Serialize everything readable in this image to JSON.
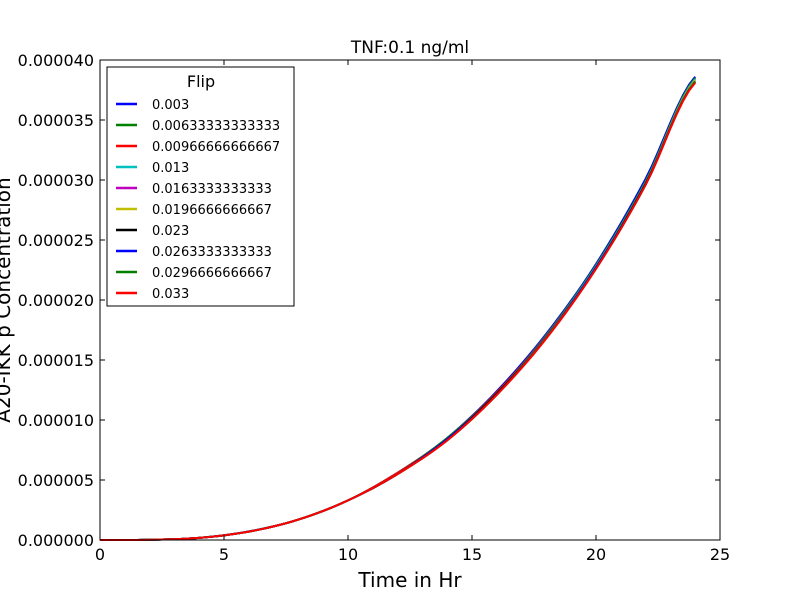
{
  "chart_data": {
    "type": "line",
    "title": "TNF:0.1 ng/ml",
    "xlabel": "Time in Hr",
    "ylabel": "A20-IKK p Concentration",
    "xlim": [
      0,
      25
    ],
    "ylim": [
      0,
      4e-05
    ],
    "x_ticks": [
      0,
      5,
      10,
      15,
      20,
      25
    ],
    "x_tick_labels": [
      "0",
      "5",
      "10",
      "15",
      "20",
      "25"
    ],
    "y_ticks": [
      0,
      5e-06,
      1e-05,
      1.5e-05,
      2e-05,
      2.5e-05,
      3e-05,
      3.5e-05,
      4e-05
    ],
    "y_tick_labels": [
      "0.000000",
      "0.000005",
      "0.000010",
      "0.000015",
      "0.000020",
      "0.000025",
      "0.000030",
      "0.000035",
      "0.000040"
    ],
    "grid": false,
    "legend": {
      "title": "Flip",
      "placement": "upper-left"
    },
    "x": [
      0,
      2,
      4,
      6,
      8,
      10,
      12,
      14,
      16,
      18,
      20,
      22,
      24
    ],
    "series": [
      {
        "name": "0.003",
        "color": "#0000ff",
        "values": [
          0,
          2e-08,
          1.8e-07,
          7.2e-07,
          1.7e-06,
          3.3e-06,
          5.6e-06,
          8.5e-06,
          1.24e-05,
          1.72e-05,
          2.3e-05,
          3.01e-05,
          3.86e-05
        ]
      },
      {
        "name": "0.00633333333333",
        "color": "#008000",
        "values": [
          0,
          2e-08,
          1.8e-07,
          7.1e-07,
          1.7e-06,
          3.3e-06,
          5.6e-06,
          8.5e-06,
          1.23e-05,
          1.71e-05,
          2.29e-05,
          2.99e-05,
          3.85e-05
        ]
      },
      {
        "name": "0.00966666666667",
        "color": "#ff0000",
        "values": [
          0,
          2e-08,
          1.8e-07,
          7.1e-07,
          1.7e-06,
          3.3e-06,
          5.6e-06,
          8.4e-06,
          1.23e-05,
          1.7e-05,
          2.28e-05,
          2.98e-05,
          3.84e-05
        ]
      },
      {
        "name": "0.013",
        "color": "#00bfbf",
        "values": [
          0,
          2e-08,
          1.8e-07,
          7.1e-07,
          1.7e-06,
          3.3e-06,
          5.5e-06,
          8.4e-06,
          1.22e-05,
          1.7e-05,
          2.28e-05,
          2.98e-05,
          3.84e-05
        ]
      },
      {
        "name": "0.0163333333333",
        "color": "#bf00bf",
        "values": [
          0,
          2e-08,
          1.8e-07,
          7e-07,
          1.7e-06,
          3.3e-06,
          5.5e-06,
          8.4e-06,
          1.22e-05,
          1.7e-05,
          2.27e-05,
          2.97e-05,
          3.83e-05
        ]
      },
      {
        "name": "0.0196666666667",
        "color": "#bfbf00",
        "values": [
          0,
          2e-08,
          1.8e-07,
          7e-07,
          1.7e-06,
          3.3e-06,
          5.5e-06,
          8.4e-06,
          1.22e-05,
          1.69e-05,
          2.27e-05,
          2.97e-05,
          3.83e-05
        ]
      },
      {
        "name": "0.023",
        "color": "#000000",
        "values": [
          0,
          2e-08,
          1.8e-07,
          7e-07,
          1.7e-06,
          3.3e-06,
          5.5e-06,
          8.4e-06,
          1.22e-05,
          1.69e-05,
          2.27e-05,
          2.97e-05,
          3.82e-05
        ]
      },
      {
        "name": "0.0263333333333",
        "color": "#0000ff",
        "values": [
          0,
          2e-08,
          1.8e-07,
          7e-07,
          1.7e-06,
          3.3e-06,
          5.5e-06,
          8.4e-06,
          1.21e-05,
          1.69e-05,
          2.27e-05,
          2.96e-05,
          3.82e-05
        ]
      },
      {
        "name": "0.0296666666667",
        "color": "#008000",
        "values": [
          0,
          2e-08,
          1.8e-07,
          7e-07,
          1.7e-06,
          3.3e-06,
          5.5e-06,
          8.3e-06,
          1.21e-05,
          1.69e-05,
          2.26e-05,
          2.96e-05,
          3.82e-05
        ]
      },
      {
        "name": "0.033",
        "color": "#ff0000",
        "values": [
          0,
          2e-08,
          1.8e-07,
          7e-07,
          1.7e-06,
          3.3e-06,
          5.5e-06,
          8.3e-06,
          1.21e-05,
          1.68e-05,
          2.26e-05,
          2.96e-05,
          3.81e-05
        ]
      }
    ]
  }
}
